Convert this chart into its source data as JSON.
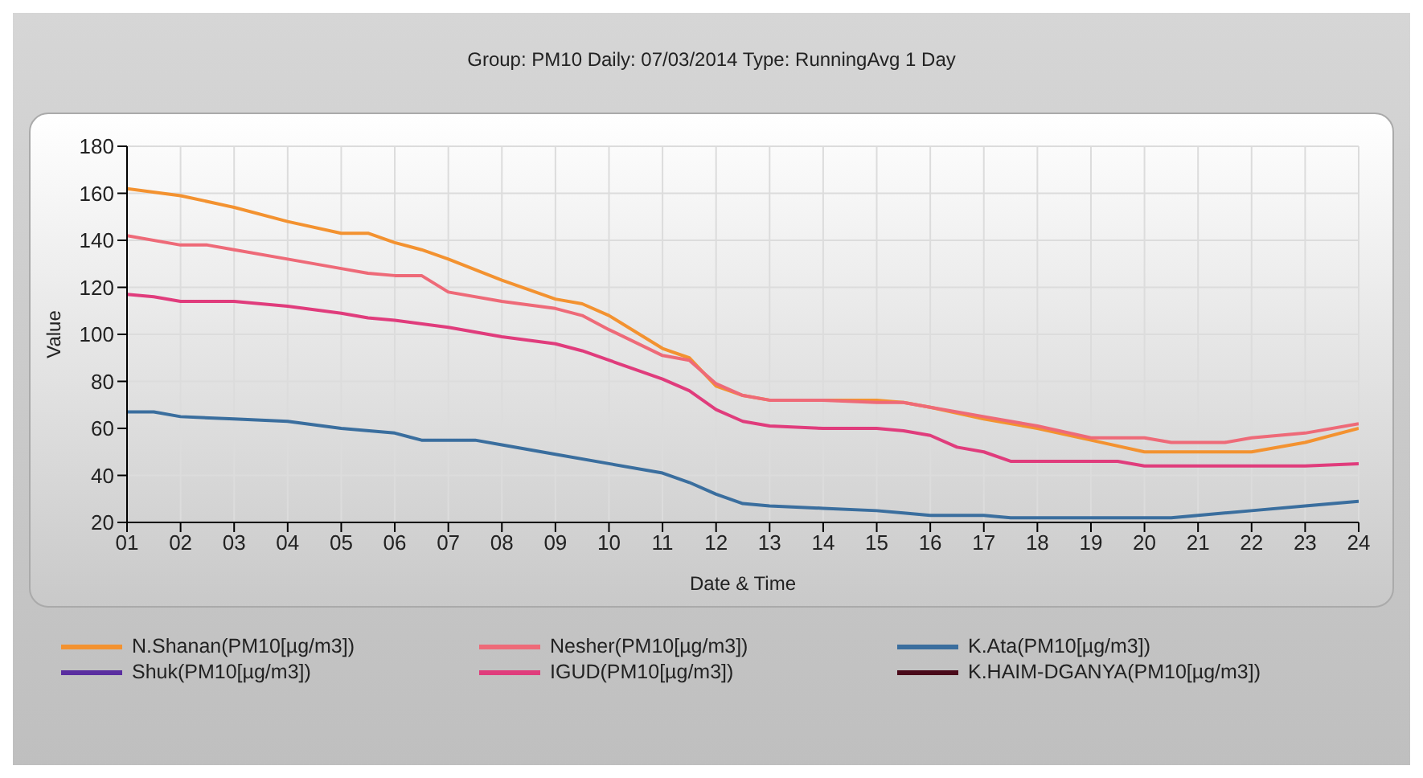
{
  "chart_data": {
    "type": "line",
    "title": "Group: PM10 Daily: 07/03/2014  Type: RunningAvg 1 Day",
    "xlabel": "Date & Time",
    "ylabel": "Value",
    "xlim": [
      1,
      24
    ],
    "xticks": [
      {
        "value": 1,
        "label": "01"
      },
      {
        "value": 2,
        "label": "02"
      },
      {
        "value": 3,
        "label": "03"
      },
      {
        "value": 4,
        "label": "04"
      },
      {
        "value": 5,
        "label": "05"
      },
      {
        "value": 6,
        "label": "06"
      },
      {
        "value": 7,
        "label": "07"
      },
      {
        "value": 8,
        "label": "08"
      },
      {
        "value": 9,
        "label": "09"
      },
      {
        "value": 10,
        "label": "10"
      },
      {
        "value": 11,
        "label": "11"
      },
      {
        "value": 12,
        "label": "12"
      },
      {
        "value": 13,
        "label": "13"
      },
      {
        "value": 14,
        "label": "14"
      },
      {
        "value": 15,
        "label": "15"
      },
      {
        "value": 16,
        "label": "16"
      },
      {
        "value": 17,
        "label": "17"
      },
      {
        "value": 18,
        "label": "18"
      },
      {
        "value": 19,
        "label": "19"
      },
      {
        "value": 20,
        "label": "20"
      },
      {
        "value": 21,
        "label": "21"
      },
      {
        "value": 22,
        "label": "22"
      },
      {
        "value": 23,
        "label": "23"
      },
      {
        "value": 24,
        "label": "24"
      }
    ],
    "ylim": [
      20,
      180
    ],
    "yticks": [
      20,
      40,
      60,
      80,
      100,
      120,
      140,
      160,
      180
    ],
    "grid": true,
    "legend": "bottom",
    "marker": "none",
    "line_style": "solid",
    "series": [
      {
        "name": "N.Shanan(PM10[µg/m3])",
        "color": "#f39230",
        "x": [
          1,
          2,
          3,
          4,
          5,
          5.5,
          6,
          6.5,
          7,
          8,
          9,
          9.5,
          10,
          11,
          11.5,
          12,
          12.5,
          13,
          14,
          15,
          15.5,
          16,
          17,
          18,
          19,
          20,
          21,
          22,
          23,
          24
        ],
        "values": [
          162,
          159,
          154,
          148,
          143,
          143,
          139,
          136,
          132,
          123,
          115,
          113,
          108,
          94,
          90,
          78,
          74,
          72,
          72,
          72,
          71,
          69,
          64,
          60,
          55,
          50,
          50,
          50,
          54,
          60
        ]
      },
      {
        "name": "Nesher(PM10[µg/m3])",
        "color": "#ee6a78",
        "x": [
          1,
          2,
          2.5,
          3,
          4,
          5,
          5.5,
          6,
          6.5,
          7,
          8,
          9,
          9.5,
          10,
          11,
          11.5,
          12,
          12.5,
          13,
          14,
          15,
          15.5,
          16,
          17,
          18,
          19,
          20,
          20.5,
          21,
          21.5,
          22,
          23,
          24
        ],
        "values": [
          142,
          138,
          138,
          136,
          132,
          128,
          126,
          125,
          125,
          118,
          114,
          111,
          108,
          102,
          91,
          89,
          79,
          74,
          72,
          72,
          71,
          71,
          69,
          65,
          61,
          56,
          56,
          54,
          54,
          54,
          56,
          58,
          62
        ]
      },
      {
        "name": "K.Ata(PM10[µg/m3])",
        "color": "#3a6e9e",
        "x": [
          1,
          1.5,
          2,
          3,
          4,
          5,
          6,
          6.5,
          7,
          7.5,
          8,
          9,
          10,
          11,
          11.5,
          12,
          12.5,
          13,
          14,
          15,
          15.5,
          16,
          17,
          17.5,
          18,
          20,
          20.5,
          21,
          22,
          23,
          24
        ],
        "values": [
          67,
          67,
          65,
          64,
          63,
          60,
          58,
          55,
          55,
          55,
          53,
          49,
          45,
          41,
          37,
          32,
          28,
          27,
          26,
          25,
          24,
          23,
          23,
          22,
          22,
          22,
          22,
          23,
          25,
          27,
          29
        ]
      },
      {
        "name": "Shuk(PM10[µg/m3])",
        "color": "#5a2ea0"
      },
      {
        "name": "IGUD(PM10[µg/m3])",
        "color": "#e03c7c",
        "x": [
          1,
          1.5,
          2,
          3,
          4,
          5,
          5.5,
          6,
          7,
          8,
          9,
          9.5,
          10,
          11,
          11.5,
          12,
          12.5,
          13,
          14,
          15,
          15.5,
          16,
          16.5,
          17,
          17.5,
          18,
          19,
          19.5,
          20,
          21,
          22,
          23,
          24
        ],
        "values": [
          117,
          116,
          114,
          114,
          112,
          109,
          107,
          106,
          103,
          99,
          96,
          93,
          89,
          81,
          76,
          68,
          63,
          61,
          60,
          60,
          59,
          57,
          52,
          50,
          46,
          46,
          46,
          46,
          44,
          44,
          44,
          44,
          45
        ]
      },
      {
        "name": "K.HAIM-DGANYA(PM10[µg/m3])",
        "color": "#4a0a1a"
      }
    ]
  }
}
